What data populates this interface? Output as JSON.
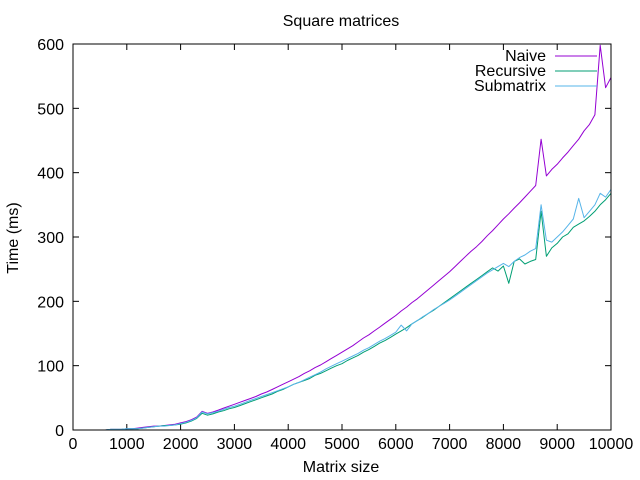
{
  "chart_data": {
    "type": "line",
    "title": "Square matrices",
    "xlabel": "Matrix size",
    "ylabel": "Time (ms)",
    "xlim": [
      0,
      10000
    ],
    "ylim": [
      0,
      600
    ],
    "xticks": [
      0,
      1000,
      2000,
      3000,
      4000,
      5000,
      6000,
      7000,
      8000,
      9000,
      10000
    ],
    "yticks": [
      0,
      100,
      200,
      300,
      400,
      500,
      600
    ],
    "grid": false,
    "legend_position": "top-right",
    "series": [
      {
        "name": "Naive",
        "color": "#9400d3",
        "x": [
          500,
          600,
          700,
          800,
          900,
          1000,
          1100,
          1200,
          1300,
          1400,
          1500,
          1600,
          1700,
          1800,
          1900,
          2000,
          2100,
          2200,
          2300,
          2400,
          2500,
          2600,
          2700,
          2800,
          2900,
          3000,
          3100,
          3200,
          3300,
          3400,
          3500,
          3600,
          3700,
          3800,
          3900,
          4000,
          4100,
          4200,
          4300,
          4400,
          4500,
          4600,
          4700,
          4800,
          4900,
          5000,
          5100,
          5200,
          5300,
          5400,
          5500,
          5600,
          5700,
          5800,
          5900,
          6000,
          6100,
          6200,
          6300,
          6400,
          6500,
          6600,
          6700,
          6800,
          6900,
          7000,
          7100,
          7200,
          7300,
          7400,
          7500,
          7600,
          7700,
          7800,
          7900,
          8000,
          8100,
          8200,
          8300,
          8400,
          8500,
          8600,
          8700,
          8800,
          8900,
          9000,
          9100,
          9200,
          9300,
          9400,
          9500,
          9600,
          9700,
          9800,
          9900,
          10000
        ],
        "y": [
          0,
          0,
          1,
          1,
          1,
          2,
          2,
          3,
          4,
          5,
          6,
          6,
          7,
          8,
          9,
          11,
          13,
          16,
          20,
          29,
          26,
          28,
          31,
          34,
          37,
          40,
          43,
          46,
          49,
          52,
          56,
          59,
          63,
          67,
          71,
          75,
          79,
          83,
          88,
          92,
          97,
          101,
          106,
          111,
          116,
          121,
          126,
          131,
          137,
          143,
          148,
          154,
          160,
          166,
          172,
          178,
          185,
          191,
          198,
          204,
          211,
          218,
          225,
          232,
          239,
          246,
          254,
          262,
          270,
          278,
          285,
          293,
          302,
          310,
          319,
          328,
          336,
          345,
          353,
          362,
          371,
          380,
          452,
          395,
          405,
          413,
          423,
          432,
          442,
          452,
          465,
          475,
          490,
          598,
          532,
          548
        ]
      },
      {
        "name": "Recursive",
        "color": "#009e73",
        "x": [
          500,
          600,
          700,
          800,
          900,
          1000,
          1100,
          1200,
          1300,
          1400,
          1500,
          1600,
          1700,
          1800,
          1900,
          2000,
          2100,
          2200,
          2300,
          2400,
          2500,
          2600,
          2700,
          2800,
          2900,
          3000,
          3100,
          3200,
          3300,
          3400,
          3500,
          3600,
          3700,
          3800,
          3900,
          4000,
          4100,
          4200,
          4300,
          4400,
          4500,
          4600,
          4700,
          4800,
          4900,
          5000,
          5100,
          5200,
          5300,
          5400,
          5500,
          5600,
          5700,
          5800,
          5900,
          6000,
          6100,
          6200,
          6300,
          6400,
          6500,
          6600,
          6700,
          6800,
          6900,
          7000,
          7100,
          7200,
          7300,
          7400,
          7500,
          7600,
          7700,
          7800,
          7900,
          8000,
          8100,
          8200,
          8300,
          8400,
          8500,
          8600,
          8700,
          8800,
          8900,
          9000,
          9100,
          9200,
          9300,
          9400,
          9500,
          9600,
          9700,
          9800,
          9900,
          10000
        ],
        "y": [
          0,
          0,
          1,
          1,
          1,
          2,
          2,
          2,
          3,
          4,
          5,
          6,
          7,
          7,
          8,
          9,
          11,
          14,
          18,
          26,
          23,
          25,
          28,
          30,
          33,
          35,
          38,
          41,
          44,
          47,
          50,
          53,
          56,
          60,
          63,
          67,
          71,
          74,
          77,
          80,
          85,
          88,
          92,
          96,
          100,
          103,
          108,
          112,
          116,
          121,
          125,
          130,
          135,
          139,
          144,
          149,
          154,
          159,
          165,
          170,
          175,
          181,
          186,
          192,
          198,
          204,
          210,
          216,
          222,
          228,
          234,
          240,
          246,
          252,
          247,
          255,
          228,
          262,
          266,
          258,
          262,
          265,
          340,
          270,
          283,
          290,
          300,
          305,
          315,
          320,
          325,
          332,
          340,
          350,
          358,
          368
        ]
      },
      {
        "name": "Submatrix",
        "color": "#56b4e9",
        "x": [
          500,
          600,
          700,
          800,
          900,
          1000,
          1100,
          1200,
          1300,
          1400,
          1500,
          1600,
          1700,
          1800,
          1900,
          2000,
          2100,
          2200,
          2300,
          2400,
          2500,
          2600,
          2700,
          2800,
          2900,
          3000,
          3100,
          3200,
          3300,
          3400,
          3500,
          3600,
          3700,
          3800,
          3900,
          4000,
          4100,
          4200,
          4300,
          4400,
          4500,
          4600,
          4700,
          4800,
          4900,
          5000,
          5100,
          5200,
          5300,
          5400,
          5500,
          5600,
          5700,
          5800,
          5900,
          6000,
          6100,
          6200,
          6300,
          6400,
          6500,
          6600,
          6700,
          6800,
          6900,
          7000,
          7100,
          7200,
          7300,
          7400,
          7500,
          7600,
          7700,
          7800,
          7900,
          8000,
          8100,
          8200,
          8300,
          8400,
          8500,
          8600,
          8700,
          8800,
          8900,
          9000,
          9100,
          9200,
          9300,
          9400,
          9500,
          9600,
          9700,
          9800,
          9900,
          10000
        ],
        "y": [
          0,
          0,
          1,
          1,
          1,
          2,
          2,
          2,
          3,
          4,
          5,
          6,
          6,
          7,
          8,
          10,
          12,
          15,
          19,
          28,
          25,
          27,
          29,
          32,
          35,
          37,
          40,
          43,
          46,
          49,
          52,
          55,
          58,
          61,
          64,
          67,
          71,
          74,
          78,
          82,
          86,
          90,
          95,
          99,
          103,
          107,
          111,
          115,
          119,
          124,
          128,
          133,
          138,
          142,
          147,
          152,
          163,
          154,
          165,
          170,
          176,
          181,
          187,
          192,
          197,
          202,
          208,
          214,
          220,
          226,
          232,
          238,
          244,
          249,
          254,
          259,
          254,
          262,
          268,
          272,
          278,
          282,
          350,
          295,
          292,
          300,
          308,
          318,
          328,
          360,
          330,
          340,
          350,
          368,
          362,
          374
        ]
      }
    ]
  }
}
